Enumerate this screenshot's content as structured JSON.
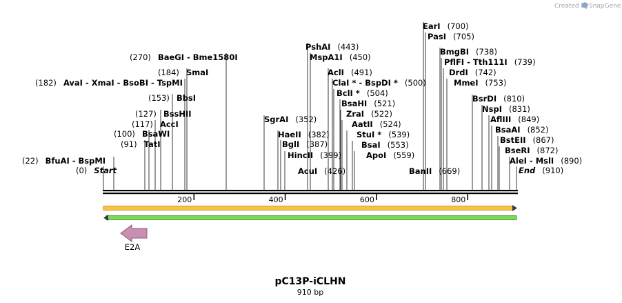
{
  "credit": {
    "prefix": "Created by",
    "brand": "SnapGene"
  },
  "plasmid": {
    "name": "pC13P-iCLHN",
    "size_label": "910 bp",
    "length": 910
  },
  "ruler": {
    "ticks": [
      200,
      400,
      600,
      800
    ]
  },
  "sites": [
    {
      "name": "Start",
      "pos": "(0)",
      "at": 0,
      "italic": true,
      "pos_left": true
    },
    {
      "name": "BfuAI  -  BspMI",
      "pos": "(22)",
      "at": 22,
      "pos_left": true
    },
    {
      "name": "TatI",
      "pos": "(91)",
      "at": 91,
      "pos_left": true
    },
    {
      "name": "BsaWI",
      "pos": "(100)",
      "at": 100,
      "pos_left": true
    },
    {
      "name": "AccI",
      "pos": "(117)",
      "at": 117,
      "pos_left": true
    },
    {
      "name": "BssHII",
      "pos": "(127)",
      "at": 127,
      "pos_left": true
    },
    {
      "name": "BbsI",
      "pos": "(153)",
      "at": 153,
      "pos_left": true
    },
    {
      "name": "AvaI  -  XmaI  -  BsoBI  -  TspMI",
      "pos": "(182)",
      "at": 182,
      "pos_left": true
    },
    {
      "name": "SmaI",
      "pos": "(184)",
      "at": 184,
      "pos_left": true
    },
    {
      "name": "BaeGI  -  Bme1580I",
      "pos": "(270)",
      "at": 270,
      "pos_left": true
    },
    {
      "name": "SgrAI",
      "pos": "(352)",
      "at": 352
    },
    {
      "name": "HaeII",
      "pos": "(382)",
      "at": 382
    },
    {
      "name": "BglI",
      "pos": "(387)",
      "at": 387
    },
    {
      "name": "HincII",
      "pos": "(399)",
      "at": 399
    },
    {
      "name": "AcuI",
      "pos": "(426)",
      "at": 426
    },
    {
      "name": "PshAI",
      "pos": "(443)",
      "at": 443
    },
    {
      "name": "MspA1I",
      "pos": "(450)",
      "at": 450
    },
    {
      "name": "AclI",
      "pos": "(491)",
      "at": 491
    },
    {
      "name": "ClaI *  -  BspDI *",
      "pos": "(500)",
      "at": 500
    },
    {
      "name": "BclI *",
      "pos": "(504)",
      "at": 504
    },
    {
      "name": "BsaHI",
      "pos": "(521)",
      "at": 521
    },
    {
      "name": "ZraI",
      "pos": "(522)",
      "at": 522
    },
    {
      "name": "AatII",
      "pos": "(524)",
      "at": 524
    },
    {
      "name": "StuI *",
      "pos": "(539)",
      "at": 539
    },
    {
      "name": "BsaI",
      "pos": "(553)",
      "at": 553
    },
    {
      "name": "ApoI",
      "pos": "(559)",
      "at": 559
    },
    {
      "name": "BanII",
      "pos": "(669)",
      "at": 669
    },
    {
      "name": "EarI",
      "pos": "(700)",
      "at": 700
    },
    {
      "name": "PasI",
      "pos": "(705)",
      "at": 705
    },
    {
      "name": "BmgBI",
      "pos": "(738)",
      "at": 738
    },
    {
      "name": "PflFI  -  Tth111I",
      "pos": "(739)",
      "at": 739
    },
    {
      "name": "DrdI",
      "pos": "(742)",
      "at": 742
    },
    {
      "name": "MmeI",
      "pos": "(753)",
      "at": 753
    },
    {
      "name": "BsrDI",
      "pos": "(810)",
      "at": 810
    },
    {
      "name": "NspI",
      "pos": "(831)",
      "at": 831
    },
    {
      "name": "AflIII",
      "pos": "(849)",
      "at": 849
    },
    {
      "name": "BsaAI",
      "pos": "(852)",
      "at": 852
    },
    {
      "name": "BstEII",
      "pos": "(867)",
      "at": 867
    },
    {
      "name": "BseRI",
      "pos": "(872)",
      "at": 872
    },
    {
      "name": "AleI  -  MslI",
      "pos": "(890)",
      "at": 890
    },
    {
      "name": "End",
      "pos": "(910)",
      "at": 910,
      "italic": true
    }
  ],
  "features": [
    {
      "name": "forward-strand-bar",
      "color": "#f5c542",
      "direction": "right"
    },
    {
      "name": "reverse-strand-bar",
      "color": "#7ed957",
      "direction": "left"
    },
    {
      "name": "E2A",
      "label": "E2A",
      "color": "#c98fb0",
      "direction": "left"
    }
  ]
}
